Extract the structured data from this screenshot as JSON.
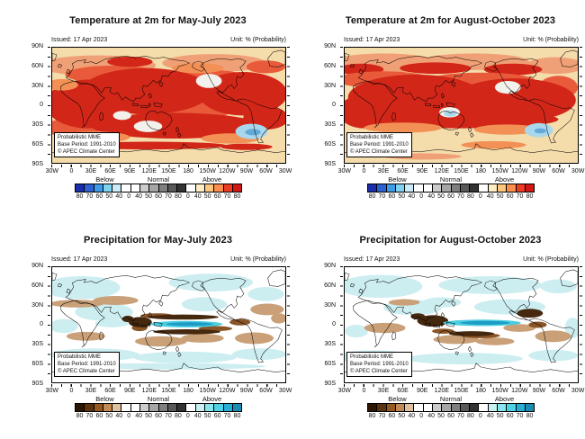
{
  "figure": {
    "background": "#ffffff"
  },
  "panels": [
    {
      "title": "Temperature at 2m for May-July 2023",
      "issued": "Issued: 17 Apr 2023",
      "unit": "Unit: % (Probability)",
      "inset": [
        "Probabilistic MME",
        "Base Period: 1991-2010",
        "© APEC Climate Center"
      ],
      "lat_labels": [
        "90N",
        "60N",
        "30N",
        "0",
        "30S",
        "60S",
        "90S"
      ],
      "lon_labels": [
        "30W",
        "0",
        "30E",
        "60E",
        "90E",
        "120E",
        "150E",
        "180",
        "150W",
        "120W",
        "90W",
        "60W",
        "30W"
      ]
    },
    {
      "title": "Temperature at 2m for August-October 2023",
      "issued": "Issued: 17 Apr 2023",
      "unit": "Unit: % (Probability)",
      "inset": [
        "Probabilistic MME",
        "Base Period: 1991-2010",
        "© APEC Climate Center"
      ],
      "lat_labels": [
        "90N",
        "60N",
        "30N",
        "0",
        "30S",
        "60S",
        "90S"
      ],
      "lon_labels": [
        "30W",
        "0",
        "30E",
        "60E",
        "90E",
        "120E",
        "150E",
        "180",
        "150W",
        "120W",
        "90W",
        "60W",
        "30W"
      ]
    },
    {
      "title": "Precipitation for May-July 2023",
      "issued": "Issued: 17 Apr 2023",
      "unit": "Unit: % (Probability)",
      "inset": [
        "Probabilistic MME",
        "Base Period: 1991-2010",
        "© APEC Climate Center"
      ],
      "lat_labels": [
        "90N",
        "60N",
        "30N",
        "0",
        "30S",
        "60S",
        "90S"
      ],
      "lon_labels": [
        "30W",
        "0",
        "30E",
        "60E",
        "90E",
        "120E",
        "150E",
        "180",
        "150W",
        "120W",
        "90W",
        "60W",
        "30W"
      ]
    },
    {
      "title": "Precipitation for August-October 2023",
      "issued": "Issued: 17 Apr 2023",
      "unit": "Unit: % (Probability)",
      "inset": [
        "Probabilistic MME",
        "Base Period: 1991-2010",
        "© APEC Climate Center"
      ],
      "lat_labels": [
        "90N",
        "60N",
        "30N",
        "0",
        "30S",
        "60S",
        "90S"
      ],
      "lon_labels": [
        "30W",
        "0",
        "30E",
        "60E",
        "90E",
        "120E",
        "150E",
        "180",
        "150W",
        "120W",
        "90W",
        "60W",
        "30W"
      ]
    }
  ],
  "colorbars": {
    "temperature": {
      "sections": [
        "Below",
        "Normal",
        "Above"
      ],
      "ticks": [
        "80",
        "70",
        "60",
        "50",
        "40",
        "0",
        "40",
        "50",
        "60",
        "70",
        "80",
        "0",
        "40",
        "50",
        "60",
        "70",
        "80"
      ],
      "cells": [
        "#1b2fae",
        "#2d62d2",
        "#3f9be8",
        "#7fd2f0",
        "#c9ecf8",
        "#ffffff",
        "#ffffff",
        "#cccccc",
        "#a6a6a6",
        "#7f7f7f",
        "#595959",
        "#333333",
        "#ffffff",
        "#fdeec5",
        "#fdc77d",
        "#fb8d4d",
        "#ef3b24",
        "#d11814"
      ]
    },
    "precipitation": {
      "sections": [
        "Below",
        "Normal",
        "Above"
      ],
      "ticks": [
        "80",
        "70",
        "60",
        "50",
        "40",
        "0",
        "40",
        "50",
        "60",
        "70",
        "80",
        "0",
        "40",
        "50",
        "60",
        "70",
        "80"
      ],
      "cells": [
        "#2d1602",
        "#5e3310",
        "#96591f",
        "#c08b55",
        "#ddc09c",
        "#ffffff",
        "#ffffff",
        "#cccccc",
        "#a6a6a6",
        "#7f7f7f",
        "#595959",
        "#333333",
        "#ffffff",
        "#c8f1f3",
        "#8ae6ee",
        "#4ed3e6",
        "#28afd5",
        "#1b8cb4"
      ]
    }
  }
}
